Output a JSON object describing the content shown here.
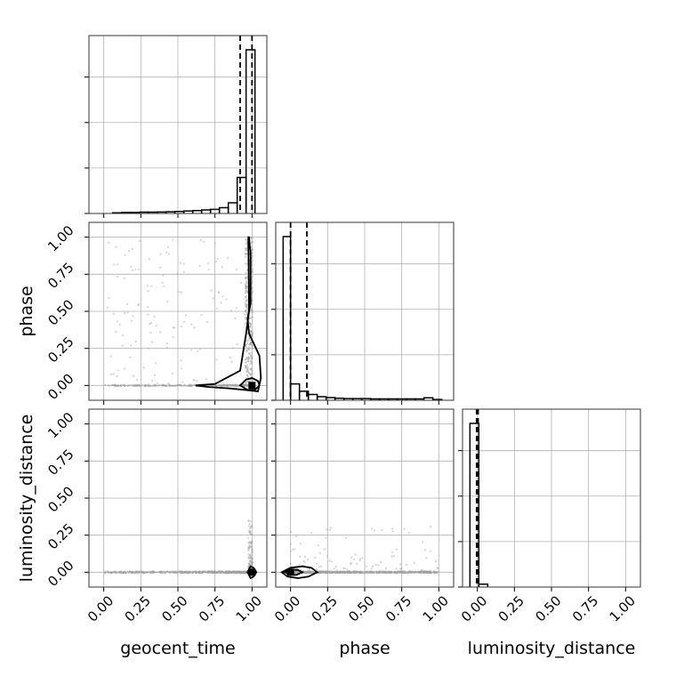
{
  "chart_data": {
    "type": "corner",
    "parameters": [
      "geocent_time",
      "phase",
      "luminosity_distance"
    ],
    "axis_ticks": [
      "0.00",
      "0.25",
      "0.50",
      "0.75",
      "1.00"
    ],
    "axis_range": [
      -0.1,
      1.1
    ],
    "grid": true,
    "truths": [
      1.0,
      0.0,
      0.0
    ],
    "line_color": "#000000",
    "sample_color": "#a0a0a0",
    "marginals": [
      {
        "parameter": "geocent_time",
        "quantile_lines": [
          0.92,
          1.0
        ],
        "bins": [
          {
            "x": 0.06,
            "w": 0.06,
            "h": 0.004
          },
          {
            "x": 0.12,
            "w": 0.06,
            "h": 0.006
          },
          {
            "x": 0.18,
            "w": 0.06,
            "h": 0.006
          },
          {
            "x": 0.24,
            "w": 0.06,
            "h": 0.008
          },
          {
            "x": 0.3,
            "w": 0.06,
            "h": 0.008
          },
          {
            "x": 0.36,
            "w": 0.06,
            "h": 0.009
          },
          {
            "x": 0.42,
            "w": 0.06,
            "h": 0.01
          },
          {
            "x": 0.48,
            "w": 0.06,
            "h": 0.012
          },
          {
            "x": 0.54,
            "w": 0.06,
            "h": 0.015
          },
          {
            "x": 0.6,
            "w": 0.06,
            "h": 0.018
          },
          {
            "x": 0.66,
            "w": 0.06,
            "h": 0.022
          },
          {
            "x": 0.72,
            "w": 0.06,
            "h": 0.025
          },
          {
            "x": 0.78,
            "w": 0.06,
            "h": 0.035
          },
          {
            "x": 0.84,
            "w": 0.06,
            "h": 0.065
          },
          {
            "x": 0.9,
            "w": 0.06,
            "h": 0.22
          },
          {
            "x": 0.96,
            "w": 0.06,
            "h": 1.0
          }
        ]
      },
      {
        "parameter": "phase",
        "quantile_lines": [
          0.0,
          0.11
        ],
        "bins": [
          {
            "x": -0.05,
            "w": 0.05,
            "h": 1.0
          },
          {
            "x": 0.0,
            "w": 0.06,
            "h": 0.1
          },
          {
            "x": 0.06,
            "w": 0.06,
            "h": 0.055
          },
          {
            "x": 0.12,
            "w": 0.06,
            "h": 0.035
          },
          {
            "x": 0.18,
            "w": 0.06,
            "h": 0.022
          },
          {
            "x": 0.24,
            "w": 0.06,
            "h": 0.016
          },
          {
            "x": 0.3,
            "w": 0.06,
            "h": 0.012
          },
          {
            "x": 0.36,
            "w": 0.06,
            "h": 0.01
          },
          {
            "x": 0.42,
            "w": 0.06,
            "h": 0.01
          },
          {
            "x": 0.48,
            "w": 0.06,
            "h": 0.01
          },
          {
            "x": 0.54,
            "w": 0.06,
            "h": 0.008
          },
          {
            "x": 0.6,
            "w": 0.06,
            "h": 0.008
          },
          {
            "x": 0.66,
            "w": 0.06,
            "h": 0.008
          },
          {
            "x": 0.72,
            "w": 0.06,
            "h": 0.008
          },
          {
            "x": 0.78,
            "w": 0.06,
            "h": 0.008
          },
          {
            "x": 0.84,
            "w": 0.06,
            "h": 0.008
          },
          {
            "x": 0.9,
            "w": 0.06,
            "h": 0.015
          },
          {
            "x": 0.96,
            "w": 0.06,
            "h": 0.005
          }
        ]
      },
      {
        "parameter": "luminosity_distance",
        "quantile_lines": [
          -0.005,
          0.005
        ],
        "bins": [
          {
            "x": -0.05,
            "w": 0.06,
            "h": 1.0
          },
          {
            "x": 0.01,
            "w": 0.06,
            "h": 0.018
          }
        ]
      }
    ],
    "scatter_2d": [
      {
        "x_param": "geocent_time",
        "y_param": "phase"
      },
      {
        "x_param": "geocent_time",
        "y_param": "luminosity_distance"
      },
      {
        "x_param": "phase",
        "y_param": "luminosity_distance"
      }
    ],
    "contours": [
      {
        "x_param": "geocent_time",
        "y_param": "phase",
        "outer": [
          [
            0.98,
            1.0
          ],
          [
            0.985,
            0.94
          ],
          [
            0.99,
            0.9
          ],
          [
            0.99,
            0.55
          ],
          [
            0.97,
            0.45
          ],
          [
            0.98,
            0.35
          ],
          [
            1.05,
            0.2
          ],
          [
            1.06,
            0.05
          ],
          [
            1.04,
            -0.04
          ],
          [
            0.95,
            -0.03
          ],
          [
            0.85,
            -0.02
          ],
          [
            0.7,
            -0.01
          ],
          [
            0.62,
            0.0
          ],
          [
            0.75,
            0.01
          ],
          [
            0.92,
            0.1
          ],
          [
            0.96,
            0.35
          ],
          [
            0.98,
            0.5
          ],
          [
            0.975,
            1.0
          ]
        ],
        "inner": [
          [
            0.92,
            0.0
          ],
          [
            0.96,
            0.04
          ],
          [
            1.0,
            0.05
          ],
          [
            1.04,
            0.03
          ],
          [
            1.05,
            0.0
          ],
          [
            1.02,
            -0.03
          ],
          [
            0.97,
            -0.03
          ],
          [
            0.92,
            0.0
          ]
        ]
      },
      {
        "x_param": "geocent_time",
        "y_param": "luminosity_distance",
        "outer": [
          [
            0.97,
            0.0
          ],
          [
            0.99,
            0.04
          ],
          [
            1.01,
            0.03
          ],
          [
            1.03,
            0.0
          ],
          [
            1.01,
            -0.03
          ],
          [
            0.99,
            -0.04
          ],
          [
            0.97,
            0.0
          ]
        ],
        "inner": [
          [
            0.985,
            0.0
          ],
          [
            0.995,
            0.015
          ],
          [
            1.005,
            0.01
          ],
          [
            1.015,
            0.0
          ],
          [
            1.005,
            -0.015
          ],
          [
            0.995,
            -0.015
          ],
          [
            0.985,
            0.0
          ]
        ]
      },
      {
        "x_param": "phase",
        "y_param": "luminosity_distance",
        "outer": [
          [
            -0.06,
            0.0
          ],
          [
            0.0,
            0.03
          ],
          [
            0.08,
            0.04
          ],
          [
            0.14,
            0.03
          ],
          [
            0.18,
            0.0
          ],
          [
            0.12,
            -0.03
          ],
          [
            0.05,
            -0.04
          ],
          [
            -0.02,
            -0.03
          ],
          [
            -0.06,
            0.0
          ]
        ],
        "inner": [
          [
            -0.04,
            0.0
          ],
          [
            0.0,
            0.018
          ],
          [
            0.05,
            0.015
          ],
          [
            0.08,
            0.0
          ],
          [
            0.04,
            -0.018
          ],
          [
            0.0,
            -0.018
          ],
          [
            -0.04,
            0.0
          ]
        ]
      }
    ]
  }
}
